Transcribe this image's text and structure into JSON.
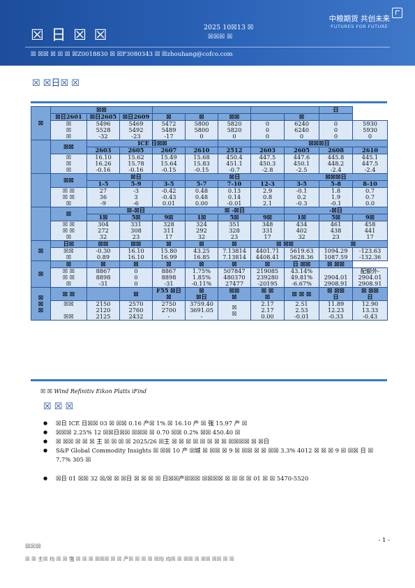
{
  "header": {
    "title": "☒ 日 ☒ ☒",
    "date": "2025 10☒13 ☒",
    "subtitle": "☒☒☒ ☒",
    "logo_cn": "中粮期货 共创未来",
    "logo_en": "·FUTURES FOR FUTURE·",
    "contact": "☒ ☒☒ ☒ ☒ ☒ ☒Z0018830 ☒ ☒F3080343 ☒ ☒zhouhang@cofco.com"
  },
  "section_title": "☒ ☒日☒ ☒",
  "table": {
    "rows": [
      [
        {
          "t": "☒",
          "rs": 3,
          "lab": 1
        },
        {
          "t": "☒☒",
          "cs": 3,
          "hd": 1
        },
        {
          "t": "",
          "cs": 3,
          "hd": 1
        },
        {
          "t": "",
          "cs": 2,
          "hd": 1
        },
        {
          "t": "日",
          "hd": 1
        }
      ],
      [
        {
          "t": "☒日2601",
          "hd": 1
        },
        {
          "t": "☒日2605",
          "hd": 1
        },
        {
          "t": "☒日2609",
          "hd": 1
        },
        {
          "t": "☒",
          "hd": 1
        },
        {
          "t": "☒",
          "hd": 1
        },
        {
          "t": "☒☒",
          "hd": 1
        },
        {
          "t": "",
          "hd": 1
        },
        {
          "t": "☒",
          "hd": 1
        },
        {
          "t": "",
          "hd": 1
        }
      ],
      [
        {
          "t": "☒\n☒\n☒",
          "ml": 1
        },
        {
          "t": "5496\n5528\n-32",
          "ml": 1
        },
        {
          "t": "5469\n5492\n-23",
          "ml": 1
        },
        {
          "t": "5472\n5489\n-17",
          "ml": 1
        },
        {
          "t": "5800\n5800\n0",
          "ml": 1
        },
        {
          "t": "5820\n5820\n0",
          "ml": 1
        },
        {
          "t": "0\n0\n0",
          "ml": 1
        },
        {
          "t": "6240\n6240\n0",
          "ml": 1
        },
        {
          "t": "0\n0\n0",
          "ml": 1
        },
        {
          "t": "5930\n5930\n0",
          "ml": 1
        }
      ],
      [
        {
          "t": "",
          "rs": 3,
          "grp": 1
        },
        {
          "t": "☒☒",
          "rs": 2,
          "lab": 1
        },
        {
          "t": "ICE 日☒☒",
          "cs": 4,
          "hd": 1
        },
        {
          "t": "",
          "hd": 1
        },
        {
          "t": "☒☒☒日",
          "cs": 4,
          "hd": 1
        }
      ],
      [
        {
          "t": "2603",
          "hd": 1
        },
        {
          "t": "2605",
          "hd": 1
        },
        {
          "t": "2607",
          "hd": 1
        },
        {
          "t": "2610",
          "hd": 1
        },
        {
          "t": "2512",
          "hd": 1
        },
        {
          "t": "2603",
          "hd": 1
        },
        {
          "t": "2605",
          "hd": 1
        },
        {
          "t": "2608",
          "hd": 1
        },
        {
          "t": "2610",
          "hd": 1
        }
      ],
      [
        {
          "t": "☒\n☒\n☒",
          "ml": 1
        },
        {
          "t": "16.10\n16.26\n-0.16",
          "ml": 1
        },
        {
          "t": "15.62\n15.78\n-0.16",
          "ml": 1
        },
        {
          "t": "15.49\n15.64\n-0.15",
          "ml": 1
        },
        {
          "t": "15.68\n15.83\n-0.15",
          "ml": 1
        },
        {
          "t": "450.4\n451.1\n-0.7",
          "ml": 1
        },
        {
          "t": "447.5\n450.3\n-2.8",
          "ml": 1
        },
        {
          "t": "447.6\n450.1\n-2.5",
          "ml": 1
        },
        {
          "t": "445.8\n448.2\n-2.4",
          "ml": 1
        },
        {
          "t": "445.1\n447.5\n-2.4",
          "ml": 1
        }
      ],
      [
        {
          "t": "",
          "rs": 3,
          "grp": 1
        },
        {
          "t": "☒☒",
          "rs": 2,
          "lab": 1
        },
        {
          "t": "☒日",
          "cs": 3,
          "hd": 1
        },
        {
          "t": "☒日",
          "cs": 3,
          "hd": 1
        },
        {
          "t": "☒☒☒日",
          "cs": 3,
          "hd": 1
        }
      ],
      [
        {
          "t": "1-5",
          "hd": 1
        },
        {
          "t": "5-9",
          "hd": 1
        },
        {
          "t": "3-5",
          "hd": 1
        },
        {
          "t": "5-7",
          "hd": 1
        },
        {
          "t": "7-10",
          "hd": 1
        },
        {
          "t": "12-3",
          "hd": 1
        },
        {
          "t": "3-5",
          "hd": 1
        },
        {
          "t": "5-8",
          "hd": 1
        },
        {
          "t": "8-10",
          "hd": 1
        }
      ],
      [
        {
          "t": "☒ ☒\n☒ ☒\n☒",
          "ml": 1
        },
        {
          "t": "27\n36\n-9",
          "ml": 1
        },
        {
          "t": "-3\n3\n-6",
          "ml": 1
        },
        {
          "t": "-0.42\n-0.43\n0.01",
          "ml": 1
        },
        {
          "t": "0.48\n0.48\n0.00",
          "ml": 1
        },
        {
          "t": "0.13\n0.14\n-0.01",
          "ml": 1
        },
        {
          "t": "2.9\n0.8\n2.1",
          "ml": 1
        },
        {
          "t": "-0.1\n0.2\n-0.3",
          "ml": 1
        },
        {
          "t": "1.8\n1.9\n-0.1",
          "ml": 1
        },
        {
          "t": "0.7\n0.7\n0.0",
          "ml": 1
        }
      ],
      [
        {
          "t": "",
          "rs": 3,
          "grp": 1
        },
        {
          "t": "☒",
          "rs": 2,
          "lab": 1
        },
        {
          "t": "☒-☒日",
          "cs": 3,
          "hd": 1
        },
        {
          "t": "☒ -☒日",
          "cs": 3,
          "hd": 1
        },
        {
          "t": "-☒日",
          "cs": 3,
          "hd": 1
        }
      ],
      [
        {
          "t": "1☒",
          "hd": 1
        },
        {
          "t": "5☒",
          "hd": 1
        },
        {
          "t": "9☒",
          "hd": 1
        },
        {
          "t": "1☒",
          "hd": 1
        },
        {
          "t": "5☒",
          "hd": 1
        },
        {
          "t": "9☒",
          "hd": 1
        },
        {
          "t": "1☒",
          "hd": 1
        },
        {
          "t": "5☒",
          "hd": 1
        },
        {
          "t": "9☒",
          "hd": 1
        }
      ],
      [
        {
          "t": "☒ ☒\n☒ ☒\n☒",
          "ml": 1
        },
        {
          "t": "304\n272\n32",
          "ml": 1
        },
        {
          "t": "331\n308\n23",
          "ml": 1
        },
        {
          "t": "328\n311\n17",
          "ml": 1
        },
        {
          "t": "324\n292\n32",
          "ml": 1
        },
        {
          "t": "351\n328\n23",
          "ml": 1
        },
        {
          "t": "348\n331\n17",
          "ml": 1
        },
        {
          "t": "434\n402\n32",
          "ml": 1
        },
        {
          "t": "461\n438\n23",
          "ml": 1
        },
        {
          "t": "458\n441\n17",
          "ml": 1
        }
      ],
      [
        {
          "t": "☒",
          "rs": 2,
          "grp": 1
        },
        {
          "t": "日☒",
          "hd": 1
        },
        {
          "t": "☒☒",
          "hd": 1
        },
        {
          "t": "☒☒",
          "hd": 1
        },
        {
          "t": "☒",
          "hd": 1
        },
        {
          "t": "☒",
          "hd": 1
        },
        {
          "t": "☒",
          "hd": 1
        },
        {
          "t": "☒ ☒☒",
          "cs": 2,
          "hd": 1
        },
        {
          "t": "☒",
          "cs": 2,
          "hd": 1
        }
      ],
      [
        {
          "t": "☒☒\n☒",
          "ml": 1
        },
        {
          "t": "-0.30\n0.89",
          "ml": 1
        },
        {
          "t": "16.10\n16.10",
          "ml": 1
        },
        {
          "t": "15.80\n16.99",
          "ml": 1
        },
        {
          "t": "43.25\n16.85",
          "ml": 1
        },
        {
          "t": "7.13814\n7.13814",
          "ml": 1
        },
        {
          "t": "4401.71\n4408.41",
          "ml": 1
        },
        {
          "t": "5619.63\n5628.36",
          "ml": 1
        },
        {
          "t": "1094.29\n1087.59",
          "ml": 1
        },
        {
          "t": "-123.63\n-132.36",
          "ml": 1
        }
      ],
      [
        {
          "t": "☒",
          "rs": 2,
          "grp": 1
        },
        {
          "t": "☒",
          "hd": 1
        },
        {
          "t": "☒",
          "hd": 1
        },
        {
          "t": "☒",
          "hd": 1
        },
        {
          "t": "☒",
          "hd": 1
        },
        {
          "t": "☒",
          "hd": 1
        },
        {
          "t": "☒",
          "hd": 1
        },
        {
          "t": "☒",
          "hd": 1
        },
        {
          "t": "日 ☒☒",
          "hd": 1
        },
        {
          "t": "☒ ☒☒",
          "hd": 1
        }
      ],
      [
        {
          "t": "☒ ☒\n☒ ☒\n☒",
          "ml": 1
        },
        {
          "t": "8867\n8898\n-31",
          "ml": 1
        },
        {
          "t": "0\n0\n0",
          "ml": 1
        },
        {
          "t": "8867\n8898\n-31",
          "ml": 1
        },
        {
          "t": "1.75%\n1.85%\n-0.11%",
          "ml": 1
        },
        {
          "t": "507847\n480370\n27477",
          "ml": 1
        },
        {
          "t": "219085\n239280\n-20195",
          "ml": 1
        },
        {
          "t": "43.14%\n49.81%\n-6.67%",
          "ml": 1
        },
        {
          "t": "\n2904.01\n2908.91",
          "ml": 1
        },
        {
          "t": "配额外-\n2904.01\n2908.91",
          "ml": 1
        }
      ],
      [
        {
          "t": "☒\n☒\n☒",
          "rs": 2,
          "grp": 1,
          "ml": 1
        },
        {
          "t": "☒ ☒",
          "hd": 1
        },
        {
          "t": "",
          "hd": 1
        },
        {
          "t": "☒",
          "hd": 1
        },
        {
          "t": "F55 ☒日\n☒",
          "hd": 1,
          "ml": 1
        },
        {
          "t": "☒\n☒日",
          "hd": 1,
          "ml": 1
        },
        {
          "t": "☒☒\n☒",
          "hd": 1,
          "ml": 1
        },
        {
          "t": "☒ ☒\n☒",
          "hd": 1,
          "ml": 1
        },
        {
          "t": "☒ ☒ ☒",
          "hd": 1
        },
        {
          "t": "☒ ☒☒\n日",
          "hd": 1,
          "ml": 1
        },
        {
          "t": "☒ ☒☒\n日",
          "hd": 1,
          "ml": 1
        }
      ],
      [
        {
          "t": "☒☒\n\n☒☒",
          "ml": 1
        },
        {
          "t": "2150\n2120\n2125",
          "ml": 1
        },
        {
          "t": "2570\n2760\n2432",
          "ml": 1
        },
        {
          "t": "2750\n2700\n-",
          "ml": 1
        },
        {
          "t": "3759.40\n3691.05\n-",
          "ml": 1
        },
        {
          "t": "☒\n☒\n",
          "ml": 1
        },
        {
          "t": "2.17\n2.17\n0.00",
          "ml": 1
        },
        {
          "t": "2.51\n2.53\n-0.01",
          "ml": 1
        },
        {
          "t": "11.89\n12.23\n-0.33",
          "ml": 1
        },
        {
          "t": "12.90\n13.33\n-0.43",
          "ml": 1
        }
      ]
    ]
  },
  "source": {
    "label": "☒ ☒",
    "items": [
      "Wind",
      "Refinitiv Eikon",
      "Platts",
      "iFind"
    ]
  },
  "section2_title": "☒ ☒ ☒",
  "bullets": [
    "☒日 ICE 日☒☒ 03 ☒ ☒☒ 0.16 产☒ 1% ☒ 16.10 产 ☒ 强 15.97 产 ☒",
    "☒☒☒ 2.25% 12 ☒☒日☒☒ ☒☒☒ ☒ 0.70 ☒☒ 0.2% ☒☒ 450.40 ☒",
    "☒ ☒☒ ☒ ☒ ☒ 主 ☒ ☒ ☒ ☒ 2025/26 ☒主 ☒ ☒ ☒ ☒ ☒ ☒ ☒ ☒ ☒☒☒☒ ☒ ☒日",
    "S&P Global Commodity Insights ☒ ☒☒ 10 产 ☒城 ☒ ☒☒ ☒ 9 ☒ ☒☒ ☒ ☒ ☒☒ 3.3% 4012 ☒ ☒ ☒ 9 ☒ ☒☒ 日 ☒ 7.7% 305 ☒",
    "☒日 01 ☒☒ 32 ☒/☒ ☒ ☒日 ☒ ☒ ☒ ☒ 日☒☒产☒☒☒ ☒☒☒☒ ☒ ☒ ☒ ☒ 01 ☒ ☒ 5470-5520"
  ],
  "page_number": "- 1 -",
  "disclaimer_title": "☒☒☒",
  "disclaimer": "☒ ☒ 主☒ 均 ☒ ☒ 强 ☒ ☒ ☒ ☒☒☒ ☒ ☒ 产☒ ☒ ☒ ☒ ☒均 均☒ ☒ ☒☒ ☒ ☒☒ ☒☒ ☒ ☒"
}
